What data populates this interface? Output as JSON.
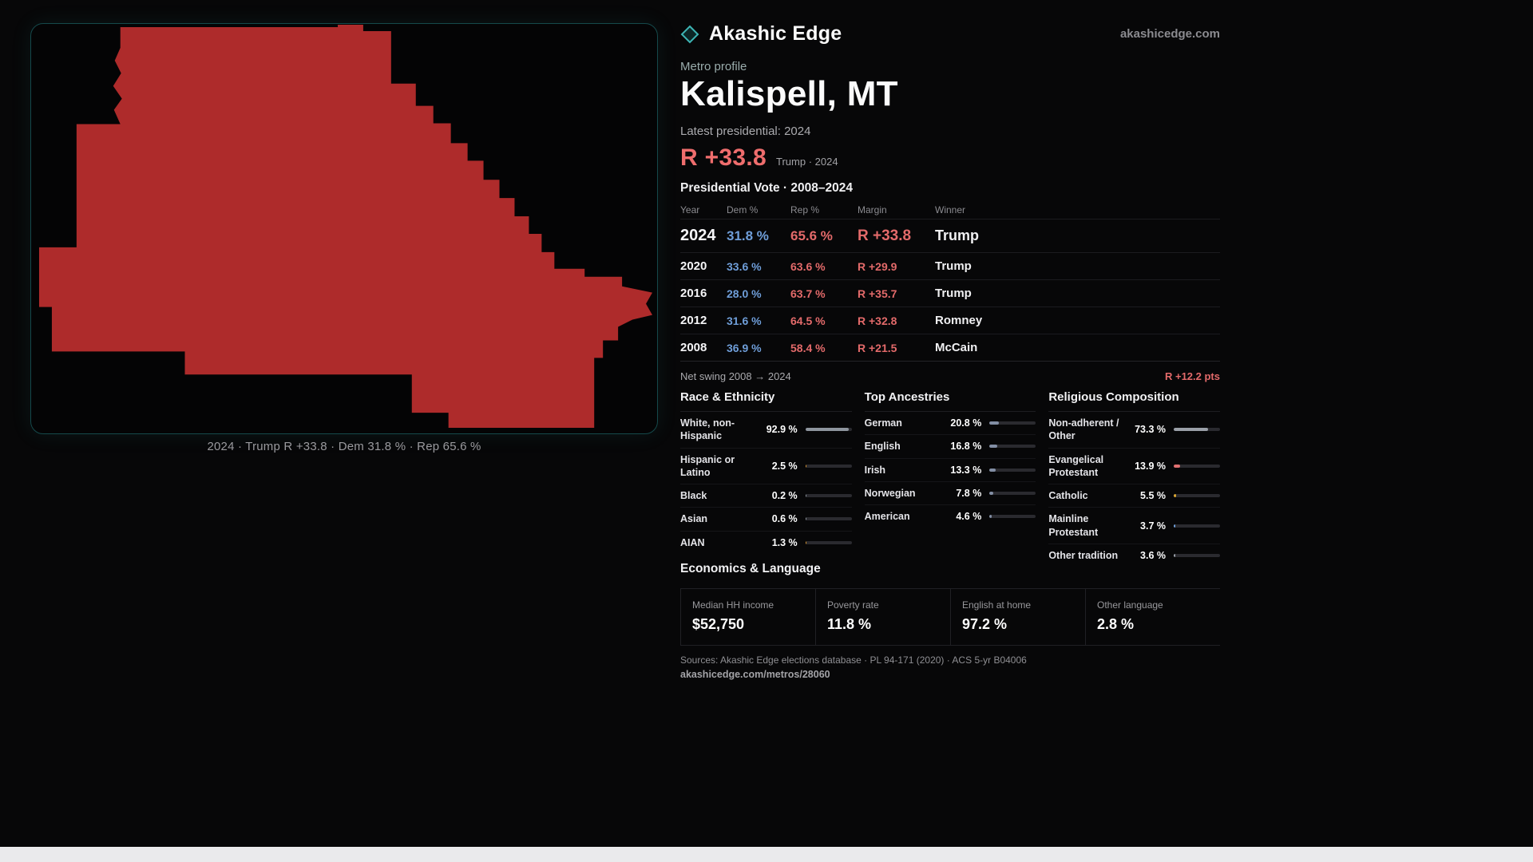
{
  "brand": {
    "name": "Akashic Edge",
    "domain": "akashicedge.com"
  },
  "map": {
    "caption": "2024 · Trump R +33.8 · Dem 31.8 % · Rep 65.6 %"
  },
  "profile": {
    "kicker": "Metro profile",
    "title": "Kalispell, MT",
    "latest_label": "Latest presidential: 2024",
    "headline_margin": "R +33.8",
    "headline_detail": "Trump · 2024"
  },
  "vote_table": {
    "title": "Presidential Vote · 2008–2024",
    "columns": [
      "Year",
      "Dem %",
      "Rep %",
      "Margin",
      "Winner"
    ],
    "rows": [
      {
        "year": "2024",
        "dem": "31.8 %",
        "rep": "65.6 %",
        "margin": "R +33.8",
        "winner": "Trump"
      },
      {
        "year": "2020",
        "dem": "33.6 %",
        "rep": "63.6 %",
        "margin": "R +29.9",
        "winner": "Trump"
      },
      {
        "year": "2016",
        "dem": "28.0 %",
        "rep": "63.7 %",
        "margin": "R +35.7",
        "winner": "Trump"
      },
      {
        "year": "2012",
        "dem": "31.6 %",
        "rep": "64.5 %",
        "margin": "R +32.8",
        "winner": "Romney"
      },
      {
        "year": "2008",
        "dem": "36.9 %",
        "rep": "58.4 %",
        "margin": "R +21.5",
        "winner": "McCain"
      }
    ],
    "net_swing_label": "Net swing 2008 → 2024",
    "net_swing_value": "R +12.2 pts"
  },
  "demographics": {
    "race": {
      "title": "Race & Ethnicity",
      "rows": [
        {
          "label": "White, non-Hispanic",
          "value": "92.9 %",
          "pct": 92.9,
          "color": "#8e959e"
        },
        {
          "label": "Hispanic or Latino",
          "value": "2.5 %",
          "pct": 2.5,
          "color": "#d9952f"
        },
        {
          "label": "Black",
          "value": "0.2 %",
          "pct": 0.2,
          "color": "#8e959e"
        },
        {
          "label": "Asian",
          "value": "0.6 %",
          "pct": 0.6,
          "color": "#8e959e"
        },
        {
          "label": "AIAN",
          "value": "1.3 %",
          "pct": 1.3,
          "color": "#d9952f"
        }
      ]
    },
    "ancestries": {
      "title": "Top Ancestries",
      "rows": [
        {
          "label": "German",
          "value": "20.8 %",
          "pct": 20.8,
          "color": "#828ea4"
        },
        {
          "label": "English",
          "value": "16.8 %",
          "pct": 16.8,
          "color": "#828ea4"
        },
        {
          "label": "Irish",
          "value": "13.3 %",
          "pct": 13.3,
          "color": "#828ea4"
        },
        {
          "label": "Norwegian",
          "value": "7.8 %",
          "pct": 7.8,
          "color": "#828ea4"
        },
        {
          "label": "American",
          "value": "4.6 %",
          "pct": 4.6,
          "color": "#828ea4"
        }
      ]
    },
    "religion": {
      "title": "Religious Composition",
      "rows": [
        {
          "label": "Non-adherent / Other",
          "value": "73.3 %",
          "pct": 73.3,
          "color": "#9aa0a8"
        },
        {
          "label": "Evangelical Protestant",
          "value": "13.9 %",
          "pct": 13.9,
          "color": "#e07070"
        },
        {
          "label": "Catholic",
          "value": "5.5 %",
          "pct": 5.5,
          "color": "#d9a531"
        },
        {
          "label": "Mainline Protestant",
          "value": "3.7 %",
          "pct": 3.7,
          "color": "#6f9ed9"
        },
        {
          "label": "Other tradition",
          "value": "3.6 %",
          "pct": 3.6,
          "color": "#9aa0a8"
        }
      ]
    }
  },
  "economics": {
    "title": "Economics & Language",
    "stats": [
      {
        "label": "Median HH income",
        "value": "$52,750"
      },
      {
        "label": "Poverty rate",
        "value": "11.8 %"
      },
      {
        "label": "English at home",
        "value": "97.2 %"
      },
      {
        "label": "Other language",
        "value": "2.8 %"
      }
    ]
  },
  "footer": {
    "sources": "Sources: Akashic Edge elections database · PL 94-171 (2020) · ACS 5-yr B04006",
    "permalink": "akashicedge.com/metros/28060"
  },
  "colors": {
    "map_fill": "#ae2b2b",
    "accent_red": "#ef6d6d",
    "dem_blue": "#6f9ed9",
    "rep_red": "#e36a6a",
    "teal": "#3db4b4"
  }
}
